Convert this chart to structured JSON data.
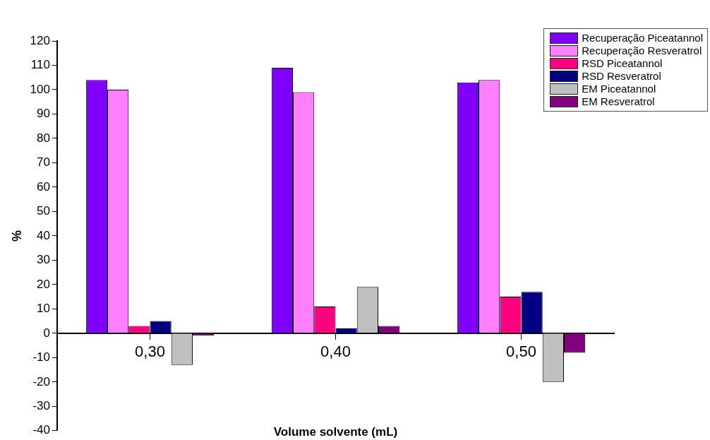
{
  "chart_data": {
    "type": "bar",
    "xlabel": "Volume solvente (mL)",
    "ylabel": "%",
    "categories": [
      "0,30",
      "0,40",
      "0,50"
    ],
    "series": [
      {
        "name": "Recuperação Piceatannol",
        "color": "#7f00ff",
        "values": [
          104,
          109,
          103
        ]
      },
      {
        "name": "Recuperação Resveratrol",
        "color": "#ff80ff",
        "values": [
          100,
          99,
          104
        ]
      },
      {
        "name": "RSD Piceatannol",
        "color": "#ff0080",
        "values": [
          3,
          11,
          15
        ]
      },
      {
        "name": "RSD Resveratrol",
        "color": "#000080",
        "values": [
          5,
          2,
          17
        ]
      },
      {
        "name": "EM Piceatannol",
        "color": "#c0c0c0",
        "values": [
          -13,
          19,
          -20
        ]
      },
      {
        "name": "EM Resveratrol",
        "color": "#800080",
        "values": [
          -1,
          3,
          -8
        ]
      }
    ],
    "ylim": [
      -40,
      120
    ],
    "yticks": [
      -40,
      -30,
      -20,
      -10,
      0,
      10,
      20,
      30,
      40,
      50,
      60,
      70,
      80,
      90,
      100,
      110,
      120
    ],
    "grid": false,
    "legend": "top right"
  }
}
